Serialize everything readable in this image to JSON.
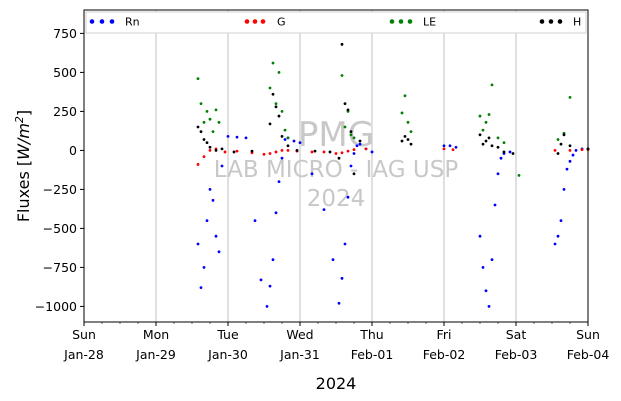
{
  "chart_data": {
    "type": "scatter",
    "title": "",
    "ylabel_prefix": "Fluxes [",
    "ylabel_unit": "W/m",
    "ylabel_exp": "2",
    "ylabel_suffix": "]",
    "xlabel": "2024",
    "xlim": [
      "2024-01-28",
      "2024-02-04"
    ],
    "ylim": [
      -1100,
      900
    ],
    "y_ticks": [
      750,
      500,
      250,
      0,
      -250,
      -500,
      -750,
      -1000
    ],
    "x_ticks": [
      {
        "date": "2024-01-28",
        "day": "Sun",
        "label": "Jan-28"
      },
      {
        "date": "2024-01-29",
        "day": "Mon",
        "label": "Jan-29"
      },
      {
        "date": "2024-01-30",
        "day": "Tue",
        "label": "Jan-30"
      },
      {
        "date": "2024-01-31",
        "day": "Wed",
        "label": "Jan-31"
      },
      {
        "date": "2024-02-01",
        "day": "Thu",
        "label": "Feb-01"
      },
      {
        "date": "2024-02-02",
        "day": "Fri",
        "label": "Feb-02"
      },
      {
        "date": "2024-02-03",
        "day": "Sat",
        "label": "Feb-03"
      },
      {
        "date": "2024-02-04",
        "day": "Sun",
        "label": "Feb-04"
      }
    ],
    "grid": "vertical lines at day ticks",
    "legend_position": "top",
    "watermark": [
      "PMG",
      "LAB MICRO - IAG USP",
      "2024"
    ],
    "series": [
      {
        "name": "Rn",
        "color": "#0000ff",
        "x": [
          "2024-01-29 14:00",
          "2024-01-29 15:00",
          "2024-01-29 16:00",
          "2024-01-29 17:00",
          "2024-01-29 18:00",
          "2024-01-29 19:00",
          "2024-01-29 20:00",
          "2024-01-29 21:00",
          "2024-01-29 22:00",
          "2024-01-30 00:00",
          "2024-01-30 03:00",
          "2024-01-30 06:00",
          "2024-01-30 09:00",
          "2024-01-30 11:00",
          "2024-01-30 13:00",
          "2024-01-30 14:00",
          "2024-01-30 15:00",
          "2024-01-30 16:00",
          "2024-01-30 17:00",
          "2024-01-30 18:00",
          "2024-01-30 19:00",
          "2024-01-30 20:00",
          "2024-01-30 22:00",
          "2024-01-31 00:00",
          "2024-01-31 04:00",
          "2024-01-31 08:00",
          "2024-01-31 11:00",
          "2024-01-31 13:00",
          "2024-01-31 14:00",
          "2024-01-31 15:00",
          "2024-01-31 16:00",
          "2024-01-31 17:00",
          "2024-01-31 18:00",
          "2024-01-31 19:00",
          "2024-01-31 20:00",
          "2024-01-31 22:00",
          "2024-02-01 00:00",
          "2024-02-02 00:00",
          "2024-02-02 02:00",
          "2024-02-02 04:00",
          "2024-02-02 12:00",
          "2024-02-02 13:00",
          "2024-02-02 14:00",
          "2024-02-02 15:00",
          "2024-02-02 16:00",
          "2024-02-02 17:00",
          "2024-02-02 18:00",
          "2024-02-02 19:00",
          "2024-02-02 20:00",
          "2024-02-02 22:00",
          "2024-02-03 13:00",
          "2024-02-03 14:00",
          "2024-02-03 15:00",
          "2024-02-03 16:00",
          "2024-02-03 17:00",
          "2024-02-03 18:00",
          "2024-02-03 19:00",
          "2024-02-03 20:00",
          "2024-02-03 22:00",
          "2024-02-04 00:00"
        ],
        "y": [
          -600,
          -880,
          -750,
          -450,
          -250,
          -320,
          -550,
          -650,
          -100,
          90,
          85,
          80,
          -450,
          -830,
          -1000,
          -870,
          -700,
          -400,
          -200,
          -50,
          70,
          80,
          60,
          50,
          -150,
          -380,
          -700,
          -980,
          -820,
          -600,
          -300,
          -100,
          -20,
          30,
          40,
          10,
          -10,
          30,
          30,
          20,
          -550,
          -750,
          -900,
          -1000,
          -700,
          -350,
          -150,
          -50,
          -20,
          -10,
          -600,
          -550,
          -450,
          -250,
          -120,
          -70,
          -30,
          0,
          10,
          10
        ]
      },
      {
        "name": "G",
        "color": "#ff0000",
        "x": [
          "2024-01-29 14:00",
          "2024-01-29 16:00",
          "2024-01-29 18:00",
          "2024-01-29 20:00",
          "2024-01-29 23:00",
          "2024-01-30 03:00",
          "2024-01-30 08:00",
          "2024-01-30 12:00",
          "2024-01-30 14:00",
          "2024-01-30 16:00",
          "2024-01-30 18:00",
          "2024-01-30 20:00",
          "2024-01-30 23:00",
          "2024-01-31 04:00",
          "2024-01-31 08:00",
          "2024-01-31 12:00",
          "2024-01-31 14:00",
          "2024-01-31 16:00",
          "2024-01-31 18:00",
          "2024-01-31 22:00",
          "2024-02-02 00:00",
          "2024-02-02 03:00",
          "2024-02-03 13:00",
          "2024-02-03 18:00",
          "2024-02-03 22:00",
          "2024-02-04 00:00"
        ],
        "y": [
          -90,
          -40,
          0,
          10,
          -10,
          -5,
          -15,
          -25,
          -20,
          -10,
          0,
          0,
          -5,
          -10,
          -10,
          -20,
          -15,
          -5,
          5,
          10,
          10,
          5,
          0,
          0,
          5,
          5
        ]
      },
      {
        "name": "LE",
        "color": "#008000",
        "x": [
          "2024-01-29 14:00",
          "2024-01-29 15:00",
          "2024-01-29 16:00",
          "2024-01-29 17:00",
          "2024-01-29 18:00",
          "2024-01-29 19:00",
          "2024-01-29 20:00",
          "2024-01-29 21:00",
          "2024-01-30 14:00",
          "2024-01-30 15:00",
          "2024-01-30 16:00",
          "2024-01-30 17:00",
          "2024-01-30 18:00",
          "2024-01-30 19:00",
          "2024-01-30 20:00",
          "2024-01-31 14:00",
          "2024-01-31 15:00",
          "2024-01-31 16:00",
          "2024-01-31 17:00",
          "2024-01-31 18:00",
          "2024-02-01 10:00",
          "2024-02-01 11:00",
          "2024-02-01 12:00",
          "2024-02-01 13:00",
          "2024-02-02 12:00",
          "2024-02-02 13:00",
          "2024-02-02 14:00",
          "2024-02-02 15:00",
          "2024-02-02 16:00",
          "2024-02-02 18:00",
          "2024-02-02 20:00",
          "2024-02-03 01:00",
          "2024-02-03 14:00",
          "2024-02-03 16:00",
          "2024-02-03 18:00"
        ],
        "y": [
          460,
          300,
          180,
          250,
          200,
          120,
          260,
          180,
          400,
          560,
          300,
          500,
          250,
          130,
          80,
          480,
          150,
          250,
          100,
          80,
          240,
          350,
          180,
          120,
          220,
          130,
          180,
          230,
          420,
          80,
          50,
          -160,
          70,
          110,
          340
        ]
      },
      {
        "name": "H",
        "color": "#000000",
        "x": [
          "2024-01-29 14:00",
          "2024-01-29 15:00",
          "2024-01-29 16:00",
          "2024-01-29 17:00",
          "2024-01-29 18:00",
          "2024-01-29 20:00",
          "2024-01-29 22:00",
          "2024-01-30 02:00",
          "2024-01-30 08:00",
          "2024-01-30 14:00",
          "2024-01-30 15:00",
          "2024-01-30 16:00",
          "2024-01-30 17:00",
          "2024-01-30 18:00",
          "2024-01-30 20:00",
          "2024-01-30 23:00",
          "2024-01-31 05:00",
          "2024-01-31 10:00",
          "2024-01-31 13:00",
          "2024-01-31 14:00",
          "2024-01-31 15:00",
          "2024-01-31 16:00",
          "2024-01-31 17:00",
          "2024-01-31 18:00",
          "2024-01-31 20:00",
          "2024-02-01 10:00",
          "2024-02-01 11:00",
          "2024-02-01 12:00",
          "2024-02-01 13:00",
          "2024-02-02 12:00",
          "2024-02-02 13:00",
          "2024-02-02 14:00",
          "2024-02-02 15:00",
          "2024-02-02 16:00",
          "2024-02-02 18:00",
          "2024-02-02 20:00",
          "2024-02-02 23:00",
          "2024-02-03 14:00",
          "2024-02-03 15:00",
          "2024-02-03 16:00",
          "2024-02-03 18:00",
          "2024-02-04 00:00"
        ],
        "y": [
          150,
          120,
          70,
          50,
          20,
          0,
          10,
          -10,
          -5,
          170,
          360,
          280,
          220,
          90,
          30,
          0,
          -5,
          -10,
          -50,
          680,
          300,
          260,
          120,
          -150,
          60,
          60,
          90,
          70,
          40,
          100,
          40,
          60,
          80,
          30,
          20,
          -10,
          -20,
          -20,
          40,
          100,
          30,
          10
        ]
      }
    ]
  }
}
